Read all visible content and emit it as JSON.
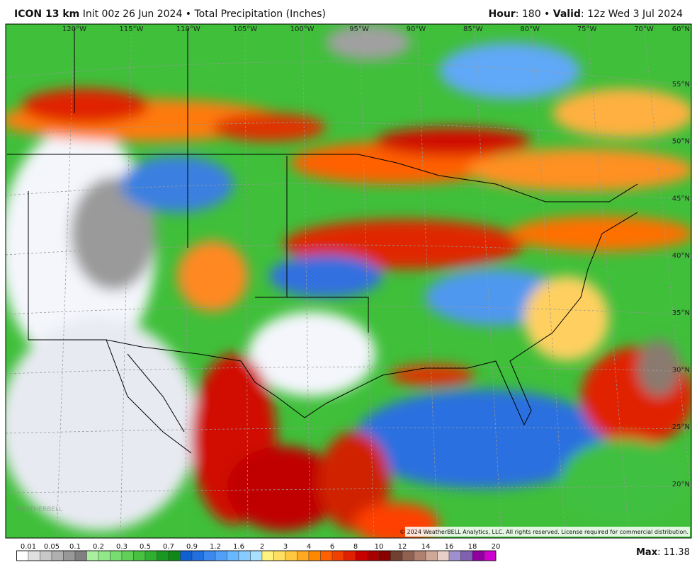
{
  "header": {
    "model": "ICON 13 km",
    "init": "Init 00z 26 Jun 2024 • Total Precipitation (Inches)",
    "hour_label": "Hour",
    "hour_text": ": 180 • ",
    "valid_label": "Valid",
    "valid_text": ": 12z Wed 3 Jul 2024"
  },
  "lon_labels": [
    "120°W",
    "115°W",
    "110°W",
    "105°W",
    "100°W",
    "95°W",
    "90°W",
    "85°W",
    "80°W",
    "75°W",
    "70°W"
  ],
  "lat_labels": [
    "60°N",
    "55°N",
    "50°N",
    "45°N",
    "40°N",
    "35°N",
    "30°N",
    "25°N",
    "20°N"
  ],
  "colorbar": {
    "labels": [
      "0.01",
      "0.05",
      "0.1",
      "0.2",
      "0.3",
      "0.5",
      "0.7",
      "0.9",
      "1.2",
      "1.6",
      "2",
      "3",
      "4",
      "6",
      "8",
      "10",
      "12",
      "14",
      "16",
      "18",
      "20"
    ],
    "colors": [
      "#ffffff",
      "#e0e0e0",
      "#c8c8c8",
      "#b0b0b0",
      "#989898",
      "#808080",
      "#a8f0a0",
      "#90e888",
      "#78dd70",
      "#60d058",
      "#48c040",
      "#30b030",
      "#189820",
      "#108818",
      "#1060d0",
      "#2070e0",
      "#3a88f0",
      "#50a0f8",
      "#68b8ff",
      "#88ccff",
      "#a8e0ff",
      "#fff380",
      "#ffe060",
      "#ffc840",
      "#ffa820",
      "#ff8800",
      "#ff6000",
      "#f04000",
      "#e02000",
      "#c80000",
      "#a80000",
      "#880000",
      "#704030",
      "#906050",
      "#b08070",
      "#d0a898",
      "#e8d0c8",
      "#a090d0",
      "#8060b0",
      "#9000a0",
      "#d000d0"
    ]
  },
  "copyright": "© 2024 WeatherBELL Analytics, LLC. All rights reserved. License required for commercial distribution.",
  "watermark": "WEATHERBELL",
  "max": {
    "label": "Max",
    "text": ": 11.38"
  }
}
